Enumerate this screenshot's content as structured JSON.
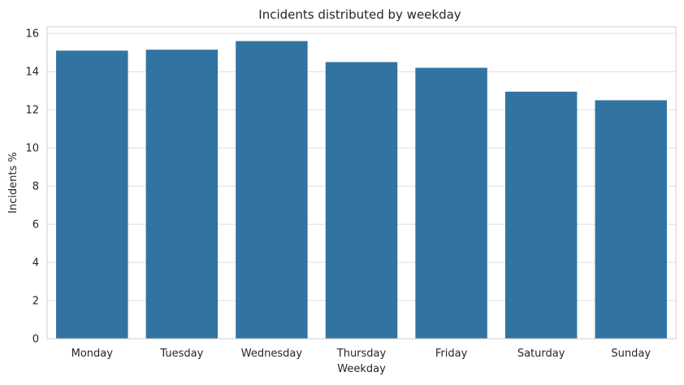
{
  "chart_data": {
    "type": "bar",
    "title": "Incidents distributed by weekday",
    "xlabel": "Weekday",
    "ylabel": "Incidents %",
    "categories": [
      "Monday",
      "Tuesday",
      "Wednesday",
      "Thursday",
      "Friday",
      "Saturday",
      "Sunday"
    ],
    "values": [
      15.1,
      15.15,
      15.6,
      14.5,
      14.2,
      12.95,
      12.5
    ],
    "ylim": [
      0,
      16.35
    ],
    "yticks": [
      "0",
      "2",
      "4",
      "6",
      "8",
      "10",
      "12",
      "14",
      "16"
    ],
    "grid": true,
    "bar_color": "#3274a1",
    "grid_color": "#dddddd",
    "axes_edge_color": "#cccccc"
  }
}
